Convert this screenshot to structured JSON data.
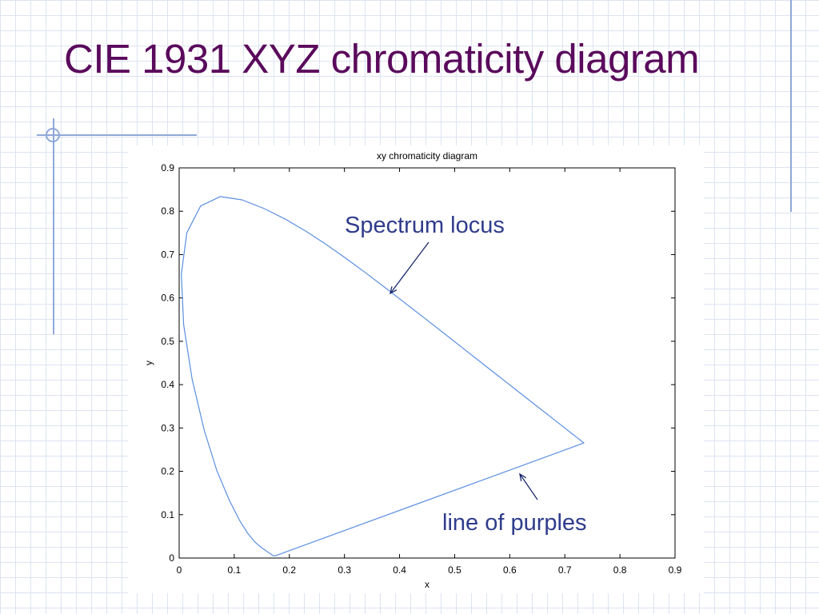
{
  "slide": {
    "title": "CIE 1931 XYZ chromaticity diagram"
  },
  "annotations": {
    "spectrum_locus": "Spectrum locus",
    "line_of_purples": "line of purples"
  },
  "colors": {
    "title": "#5a0a5c",
    "callout": "#2f3c8c",
    "curve": "#5b8fe0",
    "grid_lines": "#dde3f2"
  },
  "chart_data": {
    "type": "line",
    "title": "xy chromaticity diagram",
    "xlabel": "x",
    "ylabel": "y",
    "xlim": [
      0,
      0.9
    ],
    "ylim": [
      0,
      0.9
    ],
    "xticks": [
      0,
      0.1,
      0.2,
      0.3,
      0.4,
      0.5,
      0.6,
      0.7,
      0.8,
      0.9
    ],
    "yticks": [
      0,
      0.1,
      0.2,
      0.3,
      0.4,
      0.5,
      0.6,
      0.7,
      0.8,
      0.9
    ],
    "grid": false,
    "series": [
      {
        "x": [
          0.1741,
          0.1733,
          0.1726,
          0.1721,
          0.1714,
          0.1703,
          0.1689,
          0.1669,
          0.1644,
          0.1611,
          0.1566,
          0.151,
          0.144,
          0.1355,
          0.1241,
          0.1096,
          0.0913,
          0.0687,
          0.0454,
          0.0235,
          0.0082,
          0.0039,
          0.0139,
          0.0389,
          0.0743,
          0.1142,
          0.1547,
          0.1929,
          0.2296,
          0.2658,
          0.3016,
          0.3373,
          0.3731,
          0.4087,
          0.4441,
          0.4788,
          0.5125,
          0.5448,
          0.5752,
          0.6029,
          0.627,
          0.6482,
          0.6658,
          0.6801,
          0.6915,
          0.7006,
          0.7079,
          0.714,
          0.719,
          0.723,
          0.726,
          0.7283,
          0.73,
          0.7311,
          0.732,
          0.7327,
          0.7334,
          0.734,
          0.7344,
          0.7346,
          0.7347,
          0.1741
        ],
        "y": [
          0.005,
          0.0048,
          0.0048,
          0.0048,
          0.0051,
          0.0058,
          0.0069,
          0.0086,
          0.0109,
          0.0138,
          0.0177,
          0.0227,
          0.0297,
          0.0399,
          0.0578,
          0.0868,
          0.1327,
          0.2007,
          0.295,
          0.4127,
          0.5384,
          0.6548,
          0.7502,
          0.812,
          0.8338,
          0.8262,
          0.8059,
          0.7816,
          0.7543,
          0.7243,
          0.6923,
          0.6589,
          0.6245,
          0.5896,
          0.5547,
          0.5202,
          0.4866,
          0.4544,
          0.4242,
          0.3965,
          0.3725,
          0.3514,
          0.334,
          0.3197,
          0.3083,
          0.2993,
          0.292,
          0.2859,
          0.2809,
          0.277,
          0.274,
          0.2717,
          0.27,
          0.2689,
          0.268,
          0.2673,
          0.2666,
          0.266,
          0.2656,
          0.2654,
          0.2653,
          0.005
        ]
      }
    ]
  }
}
